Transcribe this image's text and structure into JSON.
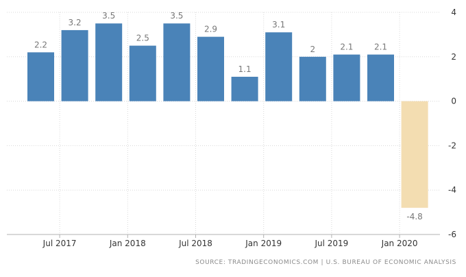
{
  "chart_data": {
    "type": "bar",
    "x": [
      "2017-Q2",
      "2017-Q3",
      "2017-Q4",
      "2018-Q1",
      "2018-Q2",
      "2018-Q3",
      "2018-Q4",
      "2019-Q1",
      "2019-Q2",
      "2019-Q3",
      "2019-Q4",
      "2020-Q1"
    ],
    "values": [
      2.2,
      3.2,
      3.5,
      2.5,
      3.5,
      2.9,
      1.1,
      3.1,
      2.0,
      2.1,
      2.1,
      -4.8
    ],
    "data_labels": [
      "2.2",
      "3.2",
      "3.5",
      "2.5",
      "3.5",
      "2.9",
      "1.1",
      "3.1",
      "2",
      "2.1",
      "2.1",
      "-4.8"
    ],
    "x_tick_labels": [
      "Jul 2017",
      "Jan 2018",
      "Jul 2018",
      "Jan 2019",
      "Jul 2019",
      "Jan 2020"
    ],
    "y_ticks": [
      4,
      2,
      0,
      -2,
      -4,
      -6
    ],
    "ylim": [
      -6,
      4
    ],
    "y_axis_side": "right",
    "grid": "dotted, horizontal and vertical",
    "title": "",
    "xlabel": "",
    "ylabel": "",
    "colors": {
      "positive": "#4a83b8",
      "negative": "#f3ddb1"
    }
  },
  "source_text": "SOURCE: TRADINGECONOMICS.COM | U.S. BUREAU OF ECONOMIC ANALYSIS"
}
